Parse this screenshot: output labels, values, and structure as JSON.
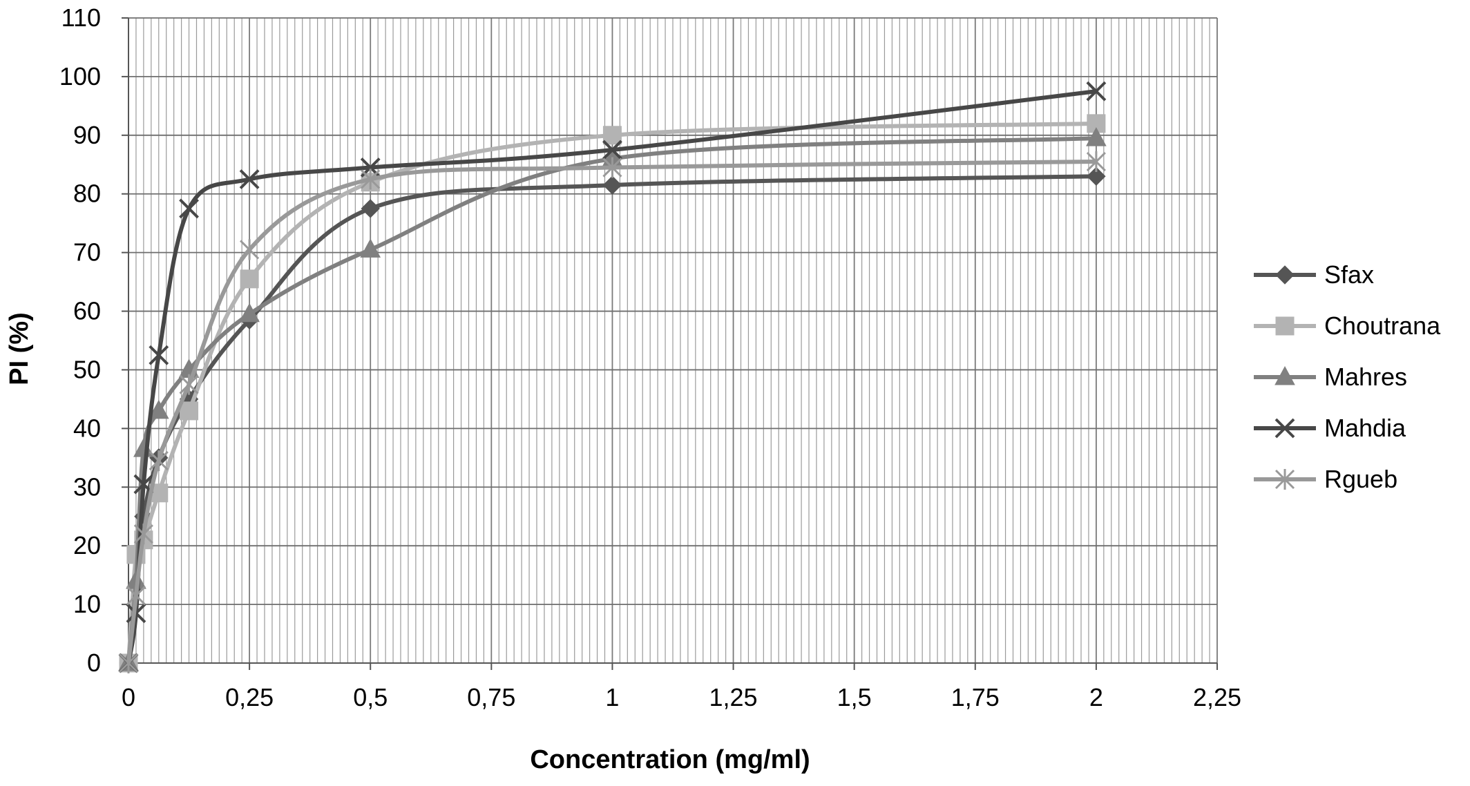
{
  "chart_data": {
    "type": "line",
    "xlabel": "Concentration (mg/ml)",
    "ylabel": "PI (%)",
    "xlim": [
      0,
      2.25
    ],
    "ylim": [
      0,
      110
    ],
    "x_ticks": [
      "0",
      "0,25",
      "0,5",
      "0,75",
      "1",
      "1,25",
      "1,5",
      "1,75",
      "2",
      "2,25"
    ],
    "y_ticks": [
      "0",
      "10",
      "20",
      "30",
      "40",
      "50",
      "60",
      "70",
      "80",
      "90",
      "100",
      "110"
    ],
    "grid": true,
    "legend_position": "right",
    "series": [
      {
        "name": "Sfax",
        "marker": "diamond",
        "color": "#555555",
        "x": [
          0,
          0.015625,
          0.03125,
          0.0625,
          0.125,
          0.25,
          0.5,
          1,
          2
        ],
        "y": [
          0,
          13,
          25,
          35,
          45,
          58.5,
          77.5,
          81.5,
          83
        ]
      },
      {
        "name": "Choutrana",
        "marker": "square",
        "color": "#b3b3b3",
        "x": [
          0,
          0.015625,
          0.03125,
          0.0625,
          0.125,
          0.25,
          0.5,
          1,
          2
        ],
        "y": [
          0,
          18.5,
          21,
          29,
          43,
          65.5,
          82,
          90,
          92
        ]
      },
      {
        "name": "Mahres",
        "marker": "triangle",
        "color": "#808080",
        "x": [
          0,
          0.015625,
          0.03125,
          0.0625,
          0.125,
          0.25,
          0.5,
          1,
          2
        ],
        "y": [
          0,
          14,
          36.5,
          43,
          50,
          59.5,
          70.5,
          86,
          89.5
        ]
      },
      {
        "name": "Mahdia",
        "marker": "x",
        "color": "#474747",
        "x": [
          0,
          0.015625,
          0.03125,
          0.0625,
          0.125,
          0.25,
          0.5,
          1,
          2
        ],
        "y": [
          0,
          8.5,
          30.5,
          52.5,
          77.5,
          82.5,
          84.5,
          87.5,
          97.5
        ]
      },
      {
        "name": "Rgueb",
        "marker": "star",
        "color": "#999999",
        "x": [
          0,
          0.015625,
          0.03125,
          0.0625,
          0.125,
          0.25,
          0.5,
          1,
          2
        ],
        "y": [
          0,
          11.5,
          22,
          34.5,
          47.5,
          70.5,
          82.5,
          84.5,
          85.5
        ]
      }
    ]
  }
}
